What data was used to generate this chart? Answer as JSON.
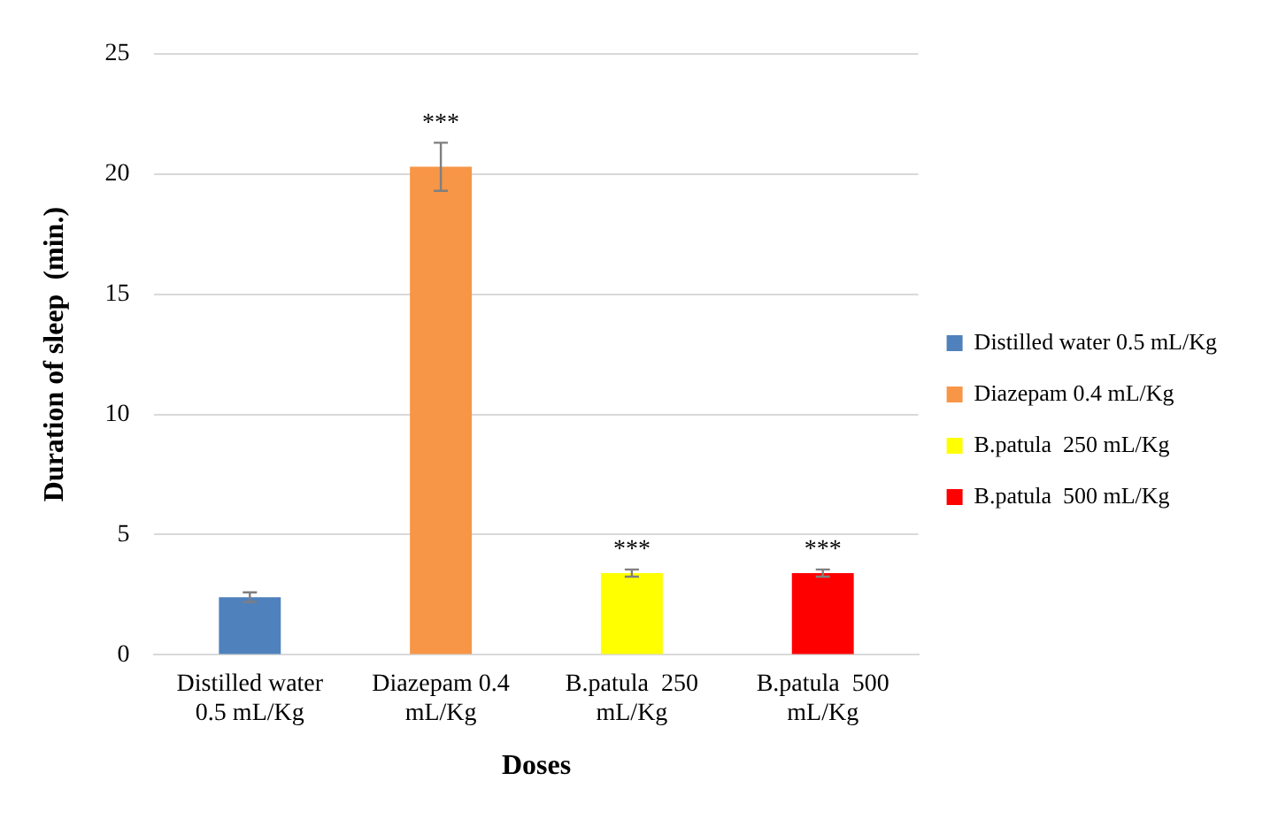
{
  "chart_data": {
    "type": "bar",
    "xlabel": "Doses",
    "ylabel": "Duration of sleep  (min.)",
    "categories": [
      "Distilled water 0.5 mL/Kg",
      "Diazepam 0.4 mL/Kg",
      "B.patula  250 mL/Kg",
      "B.patula  500 mL/Kg"
    ],
    "series": [
      {
        "name": "Distilled water 0.5 mL/Kg",
        "color": "#4f81bd",
        "values": [
          2.4,
          null,
          null,
          null
        ],
        "errors": [
          0.2,
          null,
          null,
          null
        ]
      },
      {
        "name": "Diazepam 0.4 mL/Kg",
        "color": "#f79646",
        "values": [
          null,
          20.3,
          null,
          null
        ],
        "errors": [
          null,
          1.0,
          null,
          null
        ]
      },
      {
        "name": "B.patula  250 mL/Kg",
        "color": "#ffff00",
        "values": [
          null,
          null,
          3.4,
          null
        ],
        "errors": [
          null,
          null,
          0.15,
          null
        ]
      },
      {
        "name": "B.patula  500 mL/Kg",
        "color": "#ff0000",
        "values": [
          null,
          null,
          null,
          3.4
        ],
        "errors": [
          null,
          null,
          null,
          0.15
        ]
      }
    ],
    "annotations": [
      {
        "text": "***",
        "x": "Diazepam 0.4 mL/Kg",
        "y": 20.3
      },
      {
        "text": "***",
        "x": "B.patula  250 mL/Kg",
        "y": 3.4
      },
      {
        "text": "***",
        "x": "B.patula  500 mL/Kg",
        "y": 3.4
      }
    ],
    "ylim": [
      0,
      25
    ],
    "yticks": [
      0,
      5,
      10,
      15,
      20,
      25
    ],
    "grid": "y",
    "legend": "right"
  }
}
